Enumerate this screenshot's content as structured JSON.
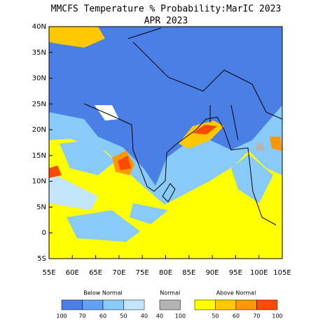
{
  "title": "MMCFS Temperature % Probability:MarIC 2023",
  "subtitle": "APR 2023",
  "map": {
    "lonlim": [
      55,
      105
    ],
    "latlim": [
      -5,
      40
    ],
    "lon_ticks": [
      {
        "value": 55,
        "label": "55E"
      },
      {
        "value": 60,
        "label": "60E"
      },
      {
        "value": 65,
        "label": "65E"
      },
      {
        "value": 70,
        "label": "70E"
      },
      {
        "value": 75,
        "label": "75E"
      },
      {
        "value": 80,
        "label": "80E"
      },
      {
        "value": 85,
        "label": "85E"
      },
      {
        "value": 90,
        "label": "90E"
      },
      {
        "value": 95,
        "label": "95E"
      },
      {
        "value": 100,
        "label": "100E"
      },
      {
        "value": 105,
        "label": "105E"
      }
    ],
    "lat_ticks": [
      {
        "value": -5,
        "label": "5S"
      },
      {
        "value": 0,
        "label": "0"
      },
      {
        "value": 5,
        "label": "5N"
      },
      {
        "value": 10,
        "label": "10N"
      },
      {
        "value": 15,
        "label": "15N"
      },
      {
        "value": 20,
        "label": "20N"
      },
      {
        "value": 25,
        "label": "25N"
      },
      {
        "value": 30,
        "label": "30N"
      },
      {
        "value": 35,
        "label": "35N"
      },
      {
        "value": 40,
        "label": "40N"
      }
    ]
  },
  "legend": [
    {
      "name": "Below Normal",
      "colors": [
        "#4a7fe6",
        "#62a2f4",
        "#88cbf8",
        "#c3e5fc"
      ],
      "labels": [
        100,
        70,
        60,
        50,
        40
      ]
    },
    {
      "name": "Normal",
      "colors": [
        "#b4b4b4"
      ],
      "labels": [
        40,
        100
      ]
    },
    {
      "name": "Above Normal",
      "colors": [
        "#ffff00",
        "#ffc800",
        "#ff9800",
        "#ff4a00"
      ],
      "labels": [
        50,
        60,
        70,
        100
      ]
    }
  ]
}
